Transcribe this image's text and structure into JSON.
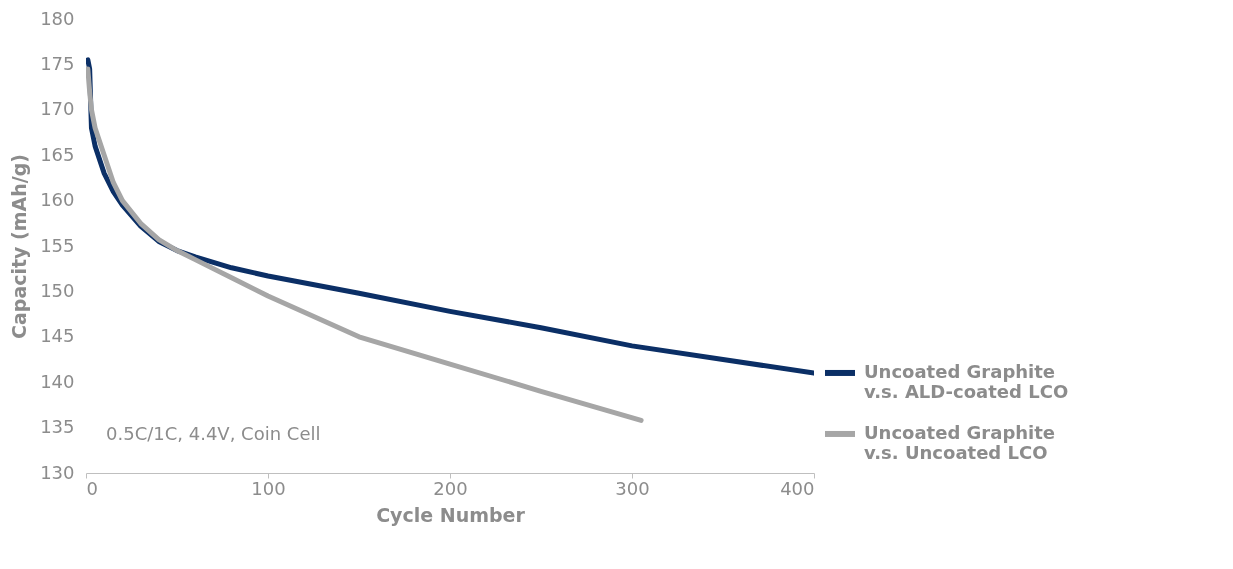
{
  "chart_data": {
    "type": "line",
    "xlabel": "Cycle Number",
    "ylabel": "Capacity (mAh/g)",
    "xlim": [
      0,
      400
    ],
    "xticks": [
      0,
      100,
      200,
      300,
      400
    ],
    "ylim": [
      130,
      180
    ],
    "yticks": [
      130,
      135,
      140,
      145,
      150,
      155,
      160,
      165,
      170,
      175,
      180
    ],
    "grid": false,
    "legend": "right",
    "marker": "none",
    "line_style": "solid",
    "annotations": [
      "0.5C/1C, 4.4V, Coin Cell"
    ],
    "series": [
      {
        "name": "Uncoated Graphite v.s. ALD-coated LCO",
        "color": "#0b2f66",
        "x": [
          1,
          2,
          3,
          5,
          10,
          15,
          20,
          30,
          40,
          50,
          60,
          80,
          100,
          150,
          200,
          250,
          300,
          350,
          400
        ],
        "values": [
          175.5,
          174.5,
          168,
          166,
          163,
          161,
          159.5,
          157.2,
          155.5,
          154.5,
          153.8,
          152.6,
          151.7,
          149.8,
          147.8,
          146,
          144,
          142.5,
          141
        ]
      },
      {
        "name": "Uncoated Graphite v.s. Uncoated LCO",
        "color": "#a6a6a6",
        "x": [
          1,
          2,
          3,
          5,
          10,
          15,
          20,
          30,
          40,
          50,
          60,
          80,
          100,
          150,
          200,
          250,
          305
        ],
        "values": [
          174.5,
          172,
          170,
          168,
          165,
          162,
          160,
          157.5,
          155.7,
          154.5,
          153.5,
          151.5,
          149.5,
          145,
          142,
          139,
          135.8
        ]
      }
    ]
  }
}
